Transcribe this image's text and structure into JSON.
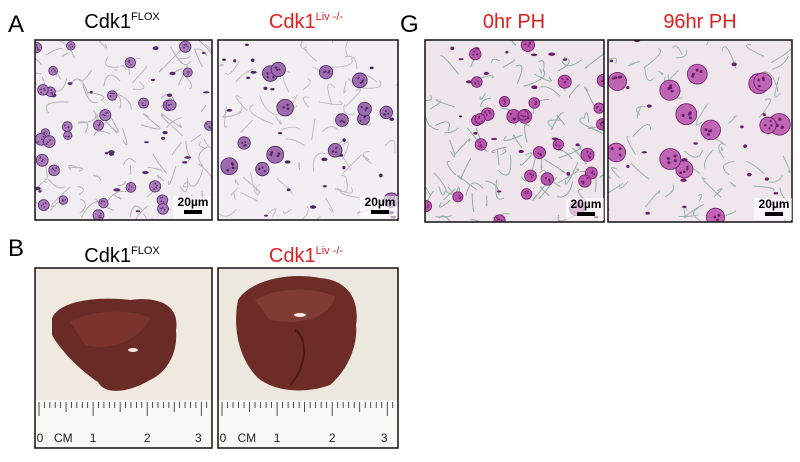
{
  "panels": [
    {
      "label": "A",
      "images": [
        {
          "title": "Cdk1",
          "title_sup": "FLOX",
          "scale_bar": "20µm"
        },
        {
          "title": "Cdk1",
          "title_sup": "Liv -/-",
          "scale_bar": "20µm"
        }
      ]
    },
    {
      "label": "B",
      "images": [
        {
          "title": "Cdk1",
          "title_sup": "FLOX",
          "ruler_labels": [
            "0",
            "CM",
            "1",
            "2",
            "3"
          ]
        },
        {
          "title": "Cdk1",
          "title_sup": "Liv -/-",
          "ruler_labels": [
            "0",
            "CM",
            "1",
            "2",
            "3"
          ]
        }
      ]
    },
    {
      "label": "G",
      "images": [
        {
          "title": "0hr PH",
          "scale_bar": "20µm"
        },
        {
          "title": "96hr PH",
          "scale_bar": "20µm"
        }
      ]
    }
  ]
}
